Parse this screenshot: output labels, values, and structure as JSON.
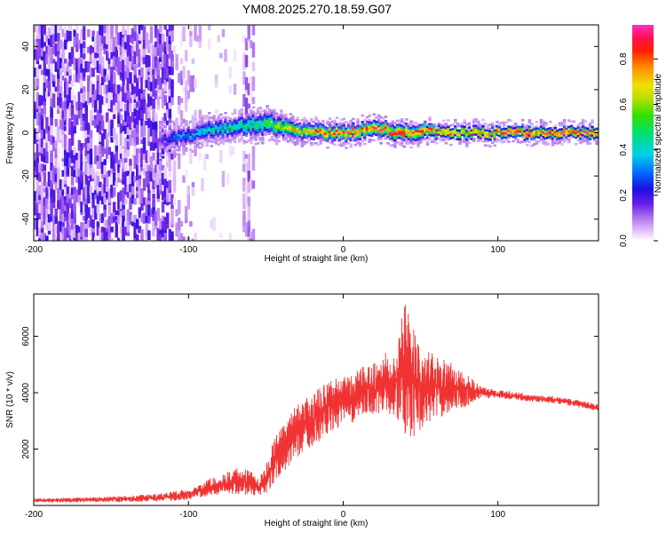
{
  "title": "YM08.2025.270.18.59.G07",
  "chart_data": [
    {
      "type": "heatmap",
      "title": "YM08.2025.270.18.59.G07",
      "xlabel": "Height of straight line (km)",
      "ylabel": "Frequency (Hz)",
      "xlim": [
        -200,
        165
      ],
      "ylim": [
        -50,
        50
      ],
      "x_ticks": [
        -200,
        -100,
        0,
        100
      ],
      "y_ticks": [
        -40,
        -20,
        0,
        20,
        40
      ],
      "x_tick_labels": [
        "-200",
        "-100",
        "0",
        "100"
      ],
      "y_tick_labels": [
        "-40",
        "-20",
        "0",
        "20",
        "40"
      ],
      "colorbar": {
        "label": "Normalized spectral amplitude",
        "range": [
          0,
          0.95
        ],
        "ticks": [
          0.0,
          0.2,
          0.4,
          0.6,
          0.8
        ],
        "tick_labels": [
          "0.0",
          "0.2",
          "0.4",
          "0.6",
          "0.8"
        ]
      },
      "signal_track": {
        "x": [
          -120,
          -110,
          -100,
          -90,
          -80,
          -70,
          -60,
          -50,
          -40,
          -30,
          -20,
          -10,
          0,
          10,
          20,
          30,
          40,
          50,
          60,
          70,
          80,
          90,
          100,
          120,
          140,
          165
        ],
        "center_hz": [
          -3,
          -2,
          -1,
          1,
          2,
          3,
          4,
          4,
          3,
          1,
          0,
          0,
          0,
          1,
          2,
          1,
          0,
          1,
          0,
          0,
          0,
          0,
          0,
          0,
          0,
          0
        ],
        "half_width_hz": [
          5,
          5,
          5,
          5,
          5,
          5,
          6,
          6,
          5,
          4,
          4,
          4,
          4,
          4,
          4,
          4,
          4,
          4,
          3,
          3,
          3,
          3,
          3,
          3,
          3,
          3
        ],
        "peak_amplitude": [
          0.15,
          0.3,
          0.35,
          0.4,
          0.45,
          0.5,
          0.5,
          0.55,
          0.65,
          0.75,
          0.8,
          0.8,
          0.85,
          0.85,
          0.9,
          0.9,
          0.95,
          0.9,
          0.85,
          0.85,
          0.8,
          0.85,
          0.9,
          0.95,
          0.95,
          0.95
        ]
      },
      "noise_region": {
        "x_range": [
          -200,
          -110
        ],
        "freq_range_hz": [
          -50,
          50
        ],
        "amplitude_range": [
          0.05,
          0.2
        ]
      },
      "vertical_noise_band": {
        "x_range": [
          -66,
          -58
        ],
        "amplitude_range": [
          0.03,
          0.12
        ]
      }
    },
    {
      "type": "line",
      "xlabel": "Height of straight line (km)",
      "ylabel": "SNR (10 * v/v)",
      "xlim": [
        -200,
        165
      ],
      "ylim": [
        0,
        7500
      ],
      "x_ticks": [
        -200,
        -100,
        0,
        100
      ],
      "y_ticks": [
        2000,
        4000,
        6000
      ],
      "x_tick_labels": [
        "-200",
        "-100",
        "0",
        "100"
      ],
      "y_tick_labels": [
        "2000",
        "4000",
        "6000"
      ],
      "color": "#f03232",
      "series": [
        {
          "name": "SNR",
          "x": [
            -200,
            -190,
            -180,
            -170,
            -160,
            -150,
            -140,
            -130,
            -120,
            -110,
            -100,
            -95,
            -90,
            -85,
            -80,
            -75,
            -70,
            -65,
            -60,
            -55,
            -50,
            -45,
            -40,
            -35,
            -30,
            -25,
            -20,
            -15,
            -10,
            -5,
            0,
            5,
            10,
            15,
            20,
            25,
            30,
            35,
            40,
            45,
            50,
            55,
            60,
            65,
            70,
            75,
            80,
            85,
            90,
            100,
            110,
            120,
            130,
            140,
            150,
            160,
            165
          ],
          "lower": [
            100,
            100,
            100,
            110,
            110,
            120,
            120,
            130,
            140,
            160,
            200,
            250,
            300,
            350,
            380,
            400,
            400,
            380,
            350,
            300,
            400,
            700,
            1000,
            1400,
            1700,
            1900,
            2100,
            2300,
            2500,
            2700,
            2800,
            2900,
            3000,
            3100,
            3200,
            3300,
            3200,
            3000,
            2500,
            2400,
            2700,
            2900,
            3000,
            3200,
            3300,
            3400,
            3500,
            3700,
            3800,
            3800,
            3750,
            3700,
            3650,
            3600,
            3500,
            3400,
            3350
          ],
          "upper": [
            250,
            260,
            280,
            290,
            300,
            320,
            340,
            380,
            420,
            500,
            600,
            700,
            850,
            1000,
            1100,
            1200,
            1300,
            1400,
            1250,
            1000,
            1500,
            2300,
            2800,
            3200,
            3600,
            3800,
            4000,
            4200,
            4400,
            4500,
            4600,
            4700,
            4800,
            5000,
            5100,
            5300,
            5600,
            6000,
            7400,
            6500,
            5400,
            5500,
            5300,
            5200,
            5100,
            4900,
            4800,
            4400,
            4200,
            4100,
            4050,
            3950,
            3900,
            3850,
            3750,
            3650,
            3600
          ]
        }
      ]
    }
  ]
}
